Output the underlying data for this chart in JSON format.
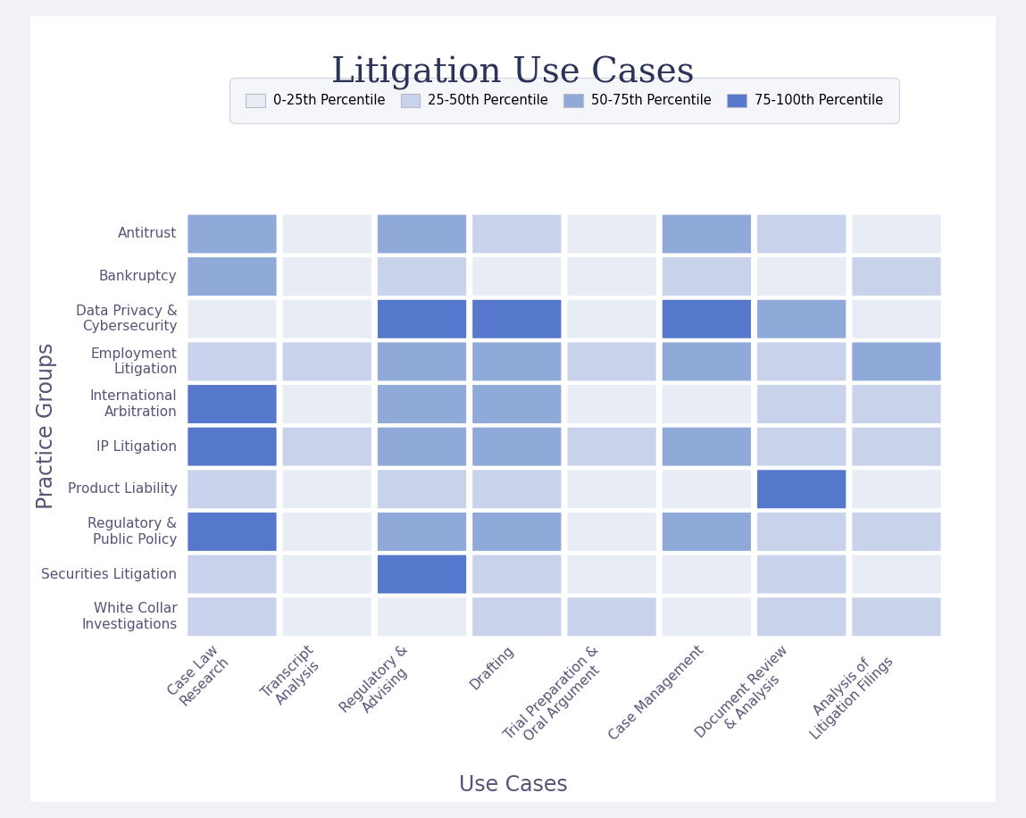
{
  "title": "Litigation Use Cases",
  "xlabel": "Use Cases",
  "ylabel": "Practice Groups",
  "rows": [
    "Antitrust",
    "Bankruptcy",
    "Data Privacy &\nCybersecurity",
    "Employment\nLitigation",
    "International\nArbitration",
    "IP Litigation",
    "Product Liability",
    "Regulatory &\nPublic Policy",
    "Securities Litigation",
    "White Collar\nInvestigations"
  ],
  "cols": [
    "Case Law\nResearch",
    "Transcript\nAnalysis",
    "Regulatory &\nAdvising",
    "Drafting",
    "Trial Preparation &\nOral Argument",
    "Case Management",
    "Document Review\n& Analysis",
    "Analysis of\nLitigation Filings"
  ],
  "values": [
    [
      3,
      1,
      3,
      2,
      1,
      3,
      2,
      1
    ],
    [
      3,
      1,
      2,
      1,
      1,
      2,
      1,
      2
    ],
    [
      1,
      1,
      4,
      4,
      1,
      4,
      3,
      1
    ],
    [
      2,
      2,
      3,
      3,
      2,
      3,
      2,
      3
    ],
    [
      4,
      1,
      3,
      3,
      1,
      1,
      2,
      2
    ],
    [
      4,
      2,
      3,
      3,
      2,
      3,
      2,
      2
    ],
    [
      2,
      1,
      2,
      2,
      1,
      1,
      4,
      1
    ],
    [
      4,
      1,
      3,
      3,
      1,
      3,
      2,
      2
    ],
    [
      2,
      1,
      4,
      2,
      1,
      1,
      2,
      1
    ],
    [
      2,
      1,
      1,
      2,
      2,
      1,
      2,
      2
    ]
  ],
  "colors": {
    "1": "#e8ecf5",
    "2": "#c8d3eb",
    "3": "#8faad8",
    "4": "#5577cc"
  },
  "legend_labels": [
    "0-25th Percentile",
    "25-50th Percentile",
    "50-75th Percentile",
    "75-100th Percentile"
  ],
  "legend_colors": [
    "#e8ecf5",
    "#c8d3eb",
    "#8faad8",
    "#5577cc"
  ],
  "outer_bg": "#f0f2f8",
  "inner_bg": "#ffffff",
  "cell_edge_color": "#ffffff",
  "title_fontsize": 28,
  "axis_label_fontsize": 17,
  "tick_fontsize": 11,
  "legend_fontsize": 10.5
}
